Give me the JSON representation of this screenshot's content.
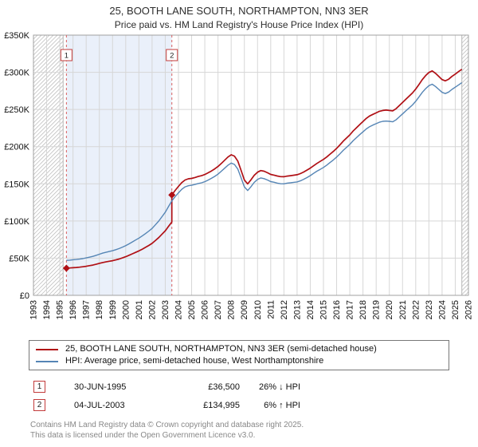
{
  "header": {
    "title": "25, BOOTH LANE SOUTH, NORTHAMPTON, NN3 3ER",
    "subtitle": "Price paid vs. HM Land Registry's House Price Index (HPI)"
  },
  "chart_data": {
    "type": "line",
    "title": "25, BOOTH LANE SOUTH, NORTHAMPTON, NN3 3ER",
    "xlabel": "",
    "ylabel": "",
    "legend_position": "bottom",
    "grid": true,
    "x_axis": {
      "min": 1993,
      "max": 2026,
      "ticks": [
        1993,
        1994,
        1995,
        1996,
        1997,
        1998,
        1999,
        2000,
        2001,
        2002,
        2003,
        2004,
        2005,
        2006,
        2007,
        2008,
        2009,
        2010,
        2011,
        2012,
        2013,
        2014,
        2015,
        2016,
        2017,
        2018,
        2019,
        2020,
        2021,
        2022,
        2023,
        2024,
        2025,
        2026
      ]
    },
    "y_axis": {
      "min": 0,
      "max": 350,
      "values_in": "thousands_gbp",
      "tick_values": [
        0,
        50,
        100,
        150,
        200,
        250,
        300,
        350
      ],
      "tick_labels": [
        "£0",
        "£50K",
        "£100K",
        "£150K",
        "£200K",
        "£250K",
        "£300K",
        "£350K"
      ]
    },
    "colors": {
      "property": "#b01015",
      "hpi": "#5585b5",
      "band": "#eaf0fa",
      "grid": "#d6d6d6",
      "hatch": "#bfbfbf",
      "sale_line": "#d95f5f",
      "flag_border": "#c23b3b"
    },
    "regions": {
      "hatch_left": [
        1993,
        1995.25
      ],
      "band": [
        1995.5,
        2003.5
      ],
      "hatch_right": [
        2025.5,
        2026
      ]
    },
    "sale_lines": [
      {
        "label": "1",
        "x": 1995.5
      },
      {
        "label": "2",
        "x": 2003.5
      }
    ],
    "markers": [
      {
        "x": 1995.5,
        "y": 36.5
      },
      {
        "x": 2003.5,
        "y": 135.0
      }
    ],
    "series": [
      {
        "name": "25, BOOTH LANE SOUTH, NORTHAMPTON, NN3 3ER (semi-detached house)",
        "color": "#b01015",
        "width": 1.7,
        "segments": [
          {
            "x_start": 1995.5,
            "x_step": 0.25,
            "values": [
              36.5,
              36.8,
              37.2,
              37.5,
              37.9,
              38.4,
              39.1,
              39.9,
              40.7,
              41.8,
              43.0,
              44.1,
              45.0,
              45.8,
              46.6,
              47.7,
              48.9,
              50.4,
              52.0,
              53.9,
              55.8,
              57.8,
              59.8,
              62.1,
              64.5,
              67.1,
              69.9,
              73.7,
              77.6,
              82.2,
              86.9,
              92.9,
              98.7
            ]
          },
          {
            "x_start": 2003.5,
            "x_step": 0.25,
            "values": [
              135.0,
              141.2,
              146.5,
              151.6,
              155.1,
              156.7,
              157.3,
              158.5,
              159.9,
              160.9,
              162.5,
              164.8,
              167.3,
              170.1,
              173.3,
              177.4,
              181.7,
              185.9,
              189.1,
              187.2,
              180.6,
              168.1,
              155.2,
              149.9,
              155.3,
              161.5,
              165.7,
              167.8,
              166.9,
              164.9,
              162.6,
              161.7,
              160.5,
              159.6,
              159.5,
              160.4,
              160.9,
              161.6,
              162.2,
              163.7,
              165.9,
              168.4,
              171.1,
              174.3,
              177.4,
              180.1,
              182.8,
              186.1,
              189.9,
              193.6,
              197.7,
              202.4,
              207.3,
              211.6,
              215.8,
              221.0,
              225.4,
              229.7,
              233.8,
              238.0,
              241.2,
              243.4,
              245.4,
              247.6,
              248.7,
              249.2,
              248.7,
              248.1,
              250.9,
              255.1,
              259.4,
              263.7,
              267.9,
              272.2,
              277.4,
              283.8,
              290.2,
              295.5,
              299.8,
              301.9,
              298.7,
              294.4,
              290.2,
              288.5,
              290.7,
              294.5,
              297.6,
              300.9,
              304.0
            ]
          }
        ]
      },
      {
        "name": "HPI: Average price, semi-detached house, West Northamptonshire",
        "color": "#5585b5",
        "width": 1.4,
        "segments": [
          {
            "x_start": 1995.5,
            "x_step": 0.25,
            "values": [
              47.0,
              47.4,
              47.9,
              48.2,
              48.7,
              49.4,
              50.3,
              51.3,
              52.4,
              53.8,
              55.3,
              56.8,
              57.9,
              58.9,
              60.0,
              61.4,
              62.9,
              64.8,
              66.9,
              69.3,
              71.8,
              74.4,
              77.0,
              79.9,
              83.0,
              86.4,
              90.0,
              94.8,
              99.9,
              105.8,
              111.9,
              119.6,
              127.0,
              132.8,
              137.8,
              142.6,
              145.9,
              147.4,
              148.0,
              149.1,
              150.4,
              151.4,
              152.9,
              155.0,
              157.4,
              160.0,
              163.0,
              166.9,
              170.9,
              174.9,
              177.9,
              176.1,
              169.9,
              158.1,
              146.0,
              141.0,
              146.1,
              151.9,
              155.9,
              157.9,
              157.0,
              155.1,
              153.0,
              152.1,
              151.0,
              150.1,
              150.0,
              150.9,
              151.4,
              152.0,
              152.6,
              154.0,
              156.1,
              158.4,
              161.0,
              164.0,
              166.9,
              169.4,
              172.0,
              175.1,
              178.6,
              182.1,
              186.0,
              190.4,
              195.0,
              199.1,
              203.0,
              207.9,
              212.0,
              216.1,
              219.9,
              223.9,
              226.9,
              229.0,
              230.9,
              232.9,
              234.0,
              234.4,
              234.0,
              233.4,
              236.0,
              240.0,
              244.0,
              248.1,
              252.0,
              256.1,
              261.0,
              267.0,
              273.0,
              278.0,
              282.0,
              284.0,
              281.0,
              277.0,
              273.0,
              271.4,
              273.5,
              277.0,
              280.0,
              283.0,
              286.0
            ]
          }
        ]
      }
    ]
  },
  "legend": {
    "items": [
      {
        "label": "25, BOOTH LANE SOUTH, NORTHAMPTON, NN3 3ER (semi-detached house)",
        "color": "#b01015"
      },
      {
        "label": "HPI: Average price, semi-detached house, West Northamptonshire",
        "color": "#5585b5"
      }
    ]
  },
  "sales": [
    {
      "num": "1",
      "date": "30-JUN-1995",
      "price": "£36,500",
      "hpi": "26% ↓ HPI"
    },
    {
      "num": "2",
      "date": "04-JUL-2003",
      "price": "£134,995",
      "hpi": "6% ↑ HPI"
    }
  ],
  "footer": {
    "line1": "Contains HM Land Registry data © Crown copyright and database right 2025.",
    "line2": "This data is licensed under the Open Government Licence v3.0."
  }
}
